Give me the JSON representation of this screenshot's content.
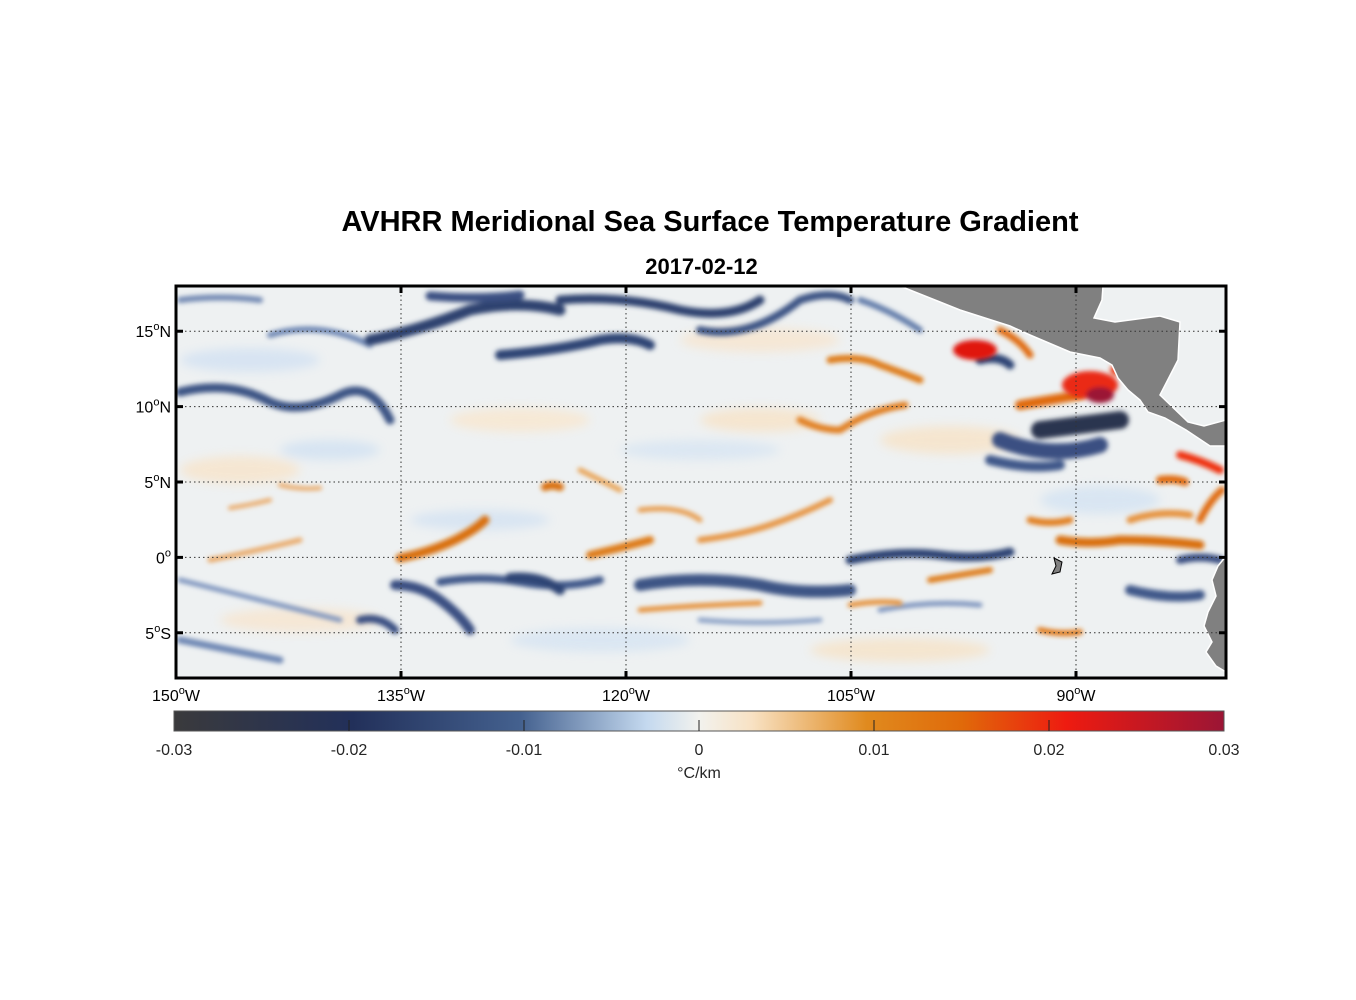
{
  "title": "AVHRR Meridional Sea Surface Temperature Gradient",
  "subtitle": "2017-02-12",
  "map": {
    "projection": "equirectangular",
    "lon_range": [
      -150,
      -80
    ],
    "lat_range": [
      -8,
      18
    ],
    "grid": "dotted",
    "land_color": "#808080",
    "lat_ticks": [
      {
        "value": 15,
        "deg": "15",
        "hemi": "N"
      },
      {
        "value": 10,
        "deg": "10",
        "hemi": "N"
      },
      {
        "value": 5,
        "deg": "5",
        "hemi": "N"
      },
      {
        "value": 0,
        "deg": "0",
        "hemi": ""
      },
      {
        "value": -5,
        "deg": "5",
        "hemi": "S"
      }
    ],
    "lon_ticks": [
      {
        "value": -150,
        "deg": "150",
        "hemi": "W"
      },
      {
        "value": -135,
        "deg": "135",
        "hemi": "W"
      },
      {
        "value": -120,
        "deg": "120",
        "hemi": "W"
      },
      {
        "value": -105,
        "deg": "105",
        "hemi": "W"
      },
      {
        "value": -90,
        "deg": "90",
        "hemi": "W"
      }
    ]
  },
  "colorbar": {
    "min": -0.03,
    "max": 0.03,
    "ticks": [
      "-0.03",
      "-0.02",
      "-0.01",
      "0",
      "0.01",
      "0.02",
      "0.03"
    ],
    "tick_values": [
      -0.03,
      -0.02,
      -0.01,
      0,
      0.01,
      0.02,
      0.03
    ],
    "label": "°C/km",
    "colors": [
      "#3a3a3c",
      "#22305a",
      "#44618f",
      "#c4d9ef",
      "#f2f2ee",
      "#f8e2c4",
      "#e08a1e",
      "#e06a0a",
      "#ee1b10",
      "#9b1535"
    ]
  }
}
